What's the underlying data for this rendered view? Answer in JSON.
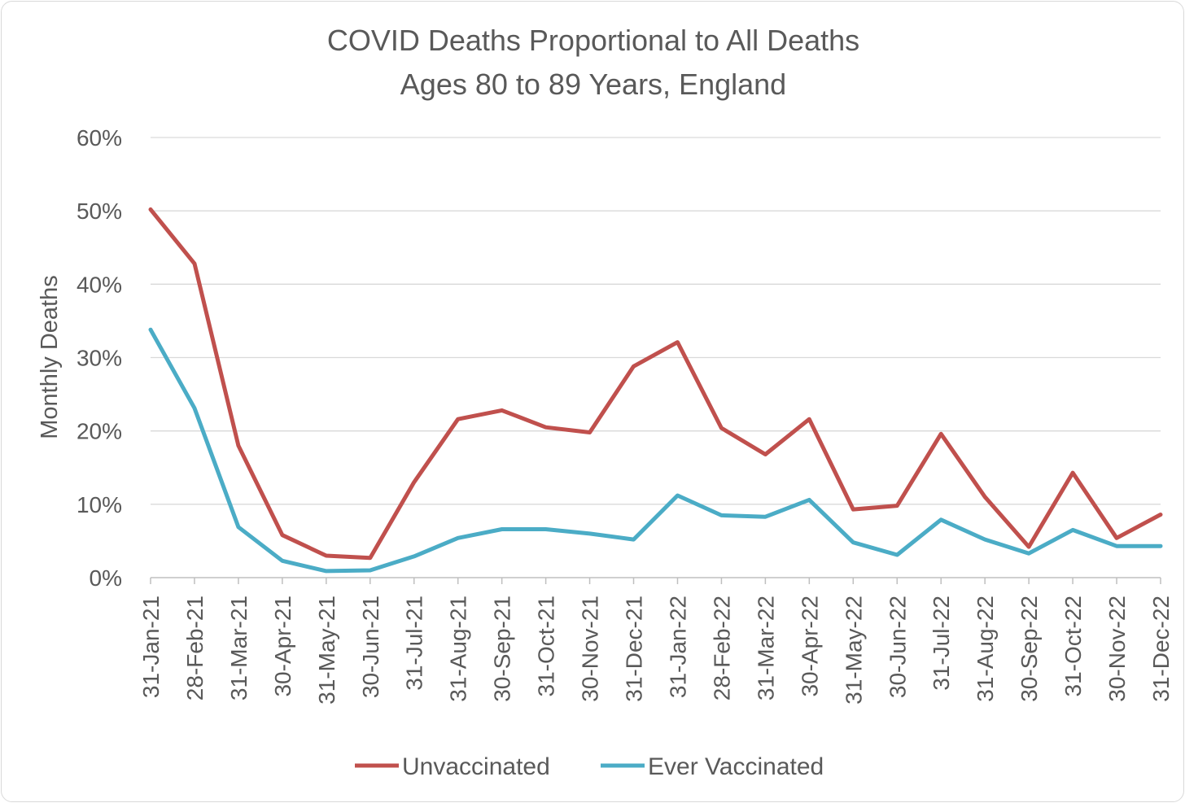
{
  "chart_data": {
    "type": "line",
    "title": "COVID Deaths Proportional to All Deaths",
    "subtitle": "Ages 80 to 89 Years, England",
    "xlabel": "",
    "ylabel": "Monthly Deaths",
    "ylim": [
      0,
      0.6
    ],
    "y_ticks": [
      {
        "value": 0.0,
        "label": "0%"
      },
      {
        "value": 0.1,
        "label": "10%"
      },
      {
        "value": 0.2,
        "label": "20%"
      },
      {
        "value": 0.3,
        "label": "30%"
      },
      {
        "value": 0.4,
        "label": "40%"
      },
      {
        "value": 0.5,
        "label": "50%"
      },
      {
        "value": 0.6,
        "label": "60%"
      }
    ],
    "grid": true,
    "legend_position": "bottom",
    "categories": [
      "31-Jan-21",
      "28-Feb-21",
      "31-Mar-21",
      "30-Apr-21",
      "31-May-21",
      "30-Jun-21",
      "31-Jul-21",
      "31-Aug-21",
      "30-Sep-21",
      "31-Oct-21",
      "30-Nov-21",
      "31-Dec-21",
      "31-Jan-22",
      "28-Feb-22",
      "31-Mar-22",
      "30-Apr-22",
      "31-May-22",
      "30-Jun-22",
      "31-Jul-22",
      "31-Aug-22",
      "30-Sep-22",
      "31-Oct-22",
      "30-Nov-22",
      "31-Dec-22"
    ],
    "series": [
      {
        "name": "Unvaccinated",
        "color": "#c0504d",
        "values": [
          0.502,
          0.428,
          0.18,
          0.058,
          0.03,
          0.027,
          0.13,
          0.216,
          0.228,
          0.205,
          0.198,
          0.288,
          0.321,
          0.204,
          0.168,
          0.216,
          0.093,
          0.098,
          0.196,
          0.11,
          0.042,
          0.143,
          0.054,
          0.086
        ]
      },
      {
        "name": "Ever Vaccinated",
        "color": "#4bacc6",
        "values": [
          0.338,
          0.231,
          0.069,
          0.023,
          0.009,
          0.01,
          0.029,
          0.054,
          0.066,
          0.066,
          0.06,
          0.052,
          0.112,
          0.085,
          0.083,
          0.106,
          0.048,
          0.031,
          0.079,
          0.052,
          0.033,
          0.065,
          0.043,
          0.043
        ]
      }
    ]
  }
}
